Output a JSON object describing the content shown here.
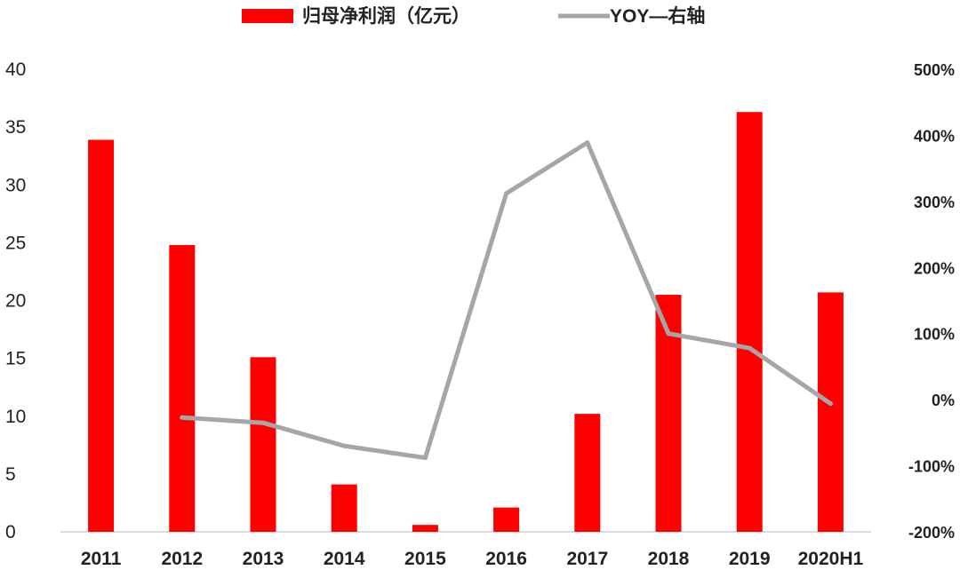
{
  "chart_data": {
    "type": "bar",
    "categories": [
      "2011",
      "2012",
      "2013",
      "2014",
      "2015",
      "2016",
      "2017",
      "2018",
      "2019",
      "2020H1"
    ],
    "series": [
      {
        "name": "归母净利润（亿元）",
        "type": "bar",
        "axis": "left",
        "color": "#ff0000",
        "values": [
          33.9,
          24.8,
          15.1,
          4.1,
          0.6,
          2.1,
          10.2,
          20.5,
          36.3,
          20.7
        ]
      },
      {
        "name": "YOY—右轴",
        "type": "line",
        "axis": "right",
        "color": "#a6a6a6",
        "values": [
          null,
          -27,
          -35,
          -70,
          -88,
          312,
          389,
          100,
          78,
          -6
        ]
      }
    ],
    "y_left": {
      "min": 0,
      "max": 40,
      "step": 5,
      "ticks": [
        "0",
        "5",
        "10",
        "15",
        "20",
        "25",
        "30",
        "35",
        "40"
      ]
    },
    "y_right": {
      "min": -200,
      "max": 500,
      "step": 100,
      "unit": "%",
      "ticks": [
        "-200%",
        "-100%",
        "0%",
        "100%",
        "200%",
        "300%",
        "400%",
        "500%"
      ]
    },
    "legend": {
      "position": "top",
      "items": [
        "归母净利润（亿元）",
        "YOY—右轴"
      ]
    },
    "grid": false,
    "title": "",
    "xlabel": "",
    "ylabel": ""
  }
}
